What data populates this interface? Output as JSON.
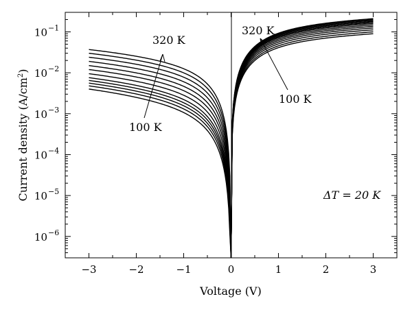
{
  "chart_data": {
    "type": "line",
    "xlabel": "Voltage (V)",
    "ylabel_base": "Current density (A/cm",
    "ylabel_sup": "2",
    "ylabel_close": ")",
    "xlim": [
      -3.5,
      3.5
    ],
    "ylim": [
      3e-07,
      0.3
    ],
    "yscale": "log",
    "grid": false,
    "legend": "none",
    "x_ticks": [
      {
        "value": -3,
        "label": "−3"
      },
      {
        "value": -2,
        "label": "−2"
      },
      {
        "value": -1,
        "label": "−1"
      },
      {
        "value": 0,
        "label": "0"
      },
      {
        "value": 1,
        "label": "1"
      },
      {
        "value": 2,
        "label": "2"
      },
      {
        "value": 3,
        "label": "3"
      }
    ],
    "y_ticks": [
      {
        "value": 0.1,
        "base": "10",
        "exp": "−1"
      },
      {
        "value": 0.01,
        "base": "10",
        "exp": "−2"
      },
      {
        "value": 0.001,
        "base": "10",
        "exp": "−3"
      },
      {
        "value": 0.0001,
        "base": "10",
        "exp": "−4"
      },
      {
        "value": 1e-05,
        "base": "10",
        "exp": "−5"
      },
      {
        "value": 1e-06,
        "base": "10",
        "exp": "−6"
      }
    ],
    "annotations": {
      "neg_high": "320 K",
      "neg_low": "100 K",
      "pos_high": "320 K",
      "pos_low": "100 K",
      "delta_t": "ΔT = 20 K"
    },
    "series": [
      {
        "temperature_K": 100,
        "neg_endpoint_at_minus3": 0.004,
        "pos_endpoint_at_3": 0.09
      },
      {
        "temperature_K": 120,
        "neg_endpoint_at_minus3": 0.0048,
        "pos_endpoint_at_3": 0.1
      },
      {
        "temperature_K": 140,
        "neg_endpoint_at_minus3": 0.0056,
        "pos_endpoint_at_3": 0.112
      },
      {
        "temperature_K": 160,
        "neg_endpoint_at_minus3": 0.0065,
        "pos_endpoint_at_3": 0.124
      },
      {
        "temperature_K": 180,
        "neg_endpoint_at_minus3": 0.0076,
        "pos_endpoint_at_3": 0.136
      },
      {
        "temperature_K": 200,
        "neg_endpoint_at_minus3": 0.0095,
        "pos_endpoint_at_3": 0.148
      },
      {
        "temperature_K": 220,
        "neg_endpoint_at_minus3": 0.012,
        "pos_endpoint_at_3": 0.16
      },
      {
        "temperature_K": 240,
        "neg_endpoint_at_minus3": 0.015,
        "pos_endpoint_at_3": 0.17
      },
      {
        "temperature_K": 260,
        "neg_endpoint_at_minus3": 0.019,
        "pos_endpoint_at_3": 0.18
      },
      {
        "temperature_K": 280,
        "neg_endpoint_at_minus3": 0.024,
        "pos_endpoint_at_3": 0.19
      },
      {
        "temperature_K": 300,
        "neg_endpoint_at_minus3": 0.03,
        "pos_endpoint_at_3": 0.2
      },
      {
        "temperature_K": 320,
        "neg_endpoint_at_minus3": 0.037,
        "pos_endpoint_at_3": 0.21
      }
    ]
  }
}
